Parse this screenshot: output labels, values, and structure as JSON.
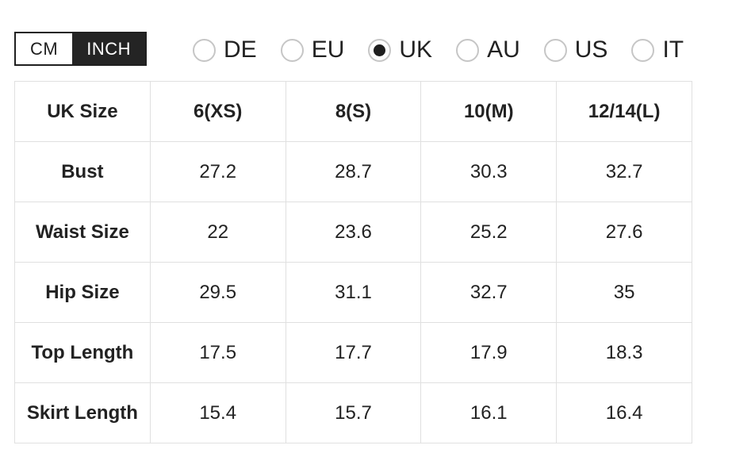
{
  "unit_toggle": {
    "options": [
      {
        "label": "CM",
        "selected": false
      },
      {
        "label": "INCH",
        "selected": true
      }
    ]
  },
  "region_options": [
    {
      "label": "DE",
      "selected": false
    },
    {
      "label": "EU",
      "selected": false
    },
    {
      "label": "UK",
      "selected": true
    },
    {
      "label": "AU",
      "selected": false
    },
    {
      "label": "US",
      "selected": false
    },
    {
      "label": "IT",
      "selected": false
    }
  ],
  "size_table": {
    "header": [
      "UK Size",
      "6(XS)",
      "8(S)",
      "10(M)",
      "12/14(L)"
    ],
    "rows": [
      {
        "label": "Bust",
        "values": [
          "27.2",
          "28.7",
          "30.3",
          "32.7"
        ]
      },
      {
        "label": "Waist Size",
        "values": [
          "22",
          "23.6",
          "25.2",
          "27.6"
        ]
      },
      {
        "label": "Hip Size",
        "values": [
          "29.5",
          "31.1",
          "32.7",
          "35"
        ]
      },
      {
        "label": "Top Length",
        "values": [
          "17.5",
          "17.7",
          "17.9",
          "18.3"
        ]
      },
      {
        "label": "Skirt Length",
        "values": [
          "15.4",
          "15.7",
          "16.1",
          "16.4"
        ]
      }
    ]
  },
  "colors": {
    "accent": "#1f1f1f",
    "table_border": "#e0e0e0",
    "radio_border": "#c6c6c6",
    "text": "#222222"
  }
}
